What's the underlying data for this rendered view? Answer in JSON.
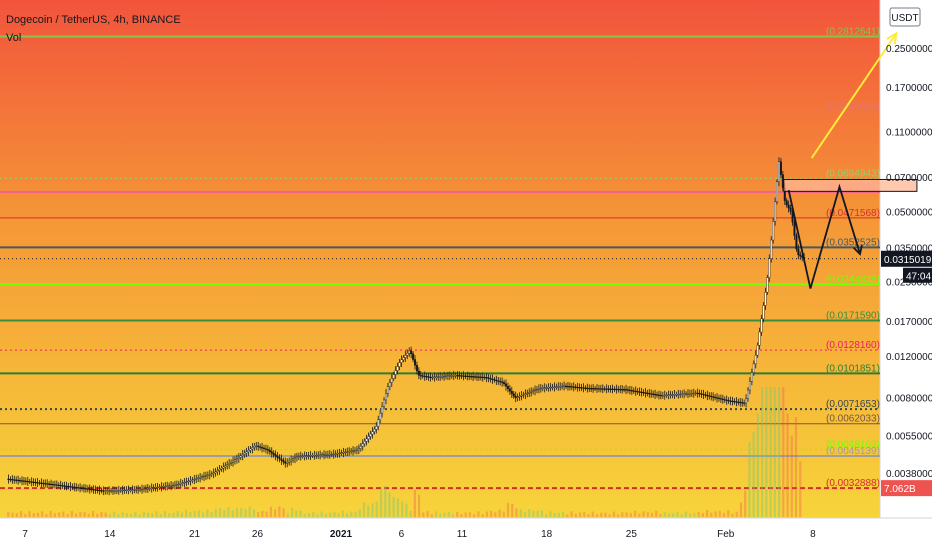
{
  "header": {
    "title": "Dogecoin / TetherUS, 4h, BINANCE",
    "indicator": "Vol",
    "currency": "USDT"
  },
  "chart_data": {
    "type": "candlestick",
    "symbol": "Dogecoin / TetherUS",
    "interval": "4h",
    "exchange": "BINANCE",
    "scale": "log",
    "ylim": [
      0.0026,
      0.38
    ],
    "x_ticks": [
      "7",
      "14",
      "21",
      "26",
      "2021",
      "6",
      "11",
      "18",
      "25",
      "Feb",
      "8"
    ],
    "y_ticks": [
      "0.2500000",
      "0.1700000",
      "0.1100000",
      "0.0700000",
      "0.0500000",
      "0.0350000",
      "0.0250000",
      "0.0170000",
      "0.0120000",
      "0.0080000",
      "0.0055000",
      "0.0038000"
    ],
    "price_path": [
      [
        0,
        0.0036
      ],
      [
        4,
        0.0034
      ],
      [
        8,
        0.0032
      ],
      [
        11,
        0.00325
      ],
      [
        14,
        0.0034
      ],
      [
        17,
        0.0038
      ],
      [
        19,
        0.0044
      ],
      [
        20.5,
        0.005
      ],
      [
        21.5,
        0.0048
      ],
      [
        23,
        0.0042
      ],
      [
        24,
        0.0045
      ],
      [
        27,
        0.0046
      ],
      [
        29,
        0.0048
      ],
      [
        30.5,
        0.006
      ],
      [
        31.5,
        0.009
      ],
      [
        32.5,
        0.0115
      ],
      [
        33.3,
        0.0128
      ],
      [
        34,
        0.01
      ],
      [
        35,
        0.0098
      ],
      [
        37,
        0.01
      ],
      [
        39.5,
        0.0098
      ],
      [
        41,
        0.0093
      ],
      [
        42,
        0.008
      ],
      [
        44,
        0.0088
      ],
      [
        46,
        0.009
      ],
      [
        48,
        0.0088
      ],
      [
        51,
        0.0087
      ],
      [
        54,
        0.0082
      ],
      [
        57,
        0.0084
      ],
      [
        59.5,
        0.0078
      ],
      [
        61,
        0.0076
      ],
      [
        62,
        0.013
      ],
      [
        62.8,
        0.025
      ],
      [
        63.4,
        0.05
      ],
      [
        63.8,
        0.082
      ],
      [
        64.3,
        0.055
      ],
      [
        64.8,
        0.05
      ],
      [
        65.3,
        0.033
      ],
      [
        65.9,
        0.0315
      ]
    ],
    "volume_spike_day": 63.4,
    "levels": [
      {
        "value": "0.2812641",
        "price": 0.2812641,
        "color": "#8bc34a",
        "style": "solid",
        "width": 2
      },
      {
        "value": "0.1345832",
        "price": 0.1345832,
        "color": "#e57373",
        "style": "dotted",
        "width": 1
      },
      {
        "value": "0.0694943",
        "price": 0.0694943,
        "color": "#9ccc65",
        "style": "dotted",
        "width": 1
      },
      {
        "value": "0.0608812",
        "price": 0.0608812,
        "color": "#f06292",
        "style": "solid",
        "width": 2
      },
      {
        "value": "0.0471568",
        "price": 0.0471568,
        "color": "#d32f2f",
        "style": "solid",
        "width": 1
      },
      {
        "value": "0.0352525",
        "price": 0.0352525,
        "color": "#455a64",
        "style": "solid",
        "width": 2
      },
      {
        "value": "0.0244825",
        "price": 0.0244825,
        "color": "#76ff03",
        "style": "solid",
        "width": 2
      },
      {
        "value": "0.0171590",
        "price": 0.017159,
        "color": "#388e3c",
        "style": "solid",
        "width": 2
      },
      {
        "value": "0.0128160",
        "price": 0.012816,
        "color": "#e91e63",
        "style": "dotted",
        "width": 1
      },
      {
        "value": "0.0101851",
        "price": 0.0101851,
        "color": "#2e7d32",
        "style": "solid",
        "width": 2
      },
      {
        "value": "0.0071653",
        "price": 0.0071653,
        "color": "#37474f",
        "style": "dotted",
        "width": 2
      },
      {
        "value": "0.0062033",
        "price": 0.0062033,
        "color": "#795548",
        "style": "solid",
        "width": 1
      },
      {
        "value": "0.0048163",
        "price": 0.0048163,
        "color": "#76ff03",
        "style": "dotted",
        "width": 1
      },
      {
        "value": "0.0045139",
        "price": 0.0045139,
        "color": "#9e9e9e",
        "style": "solid",
        "width": 2
      },
      {
        "value": "0.0032888",
        "price": 0.0032888,
        "color": "#d32f2f",
        "style": "dashed",
        "width": 2
      }
    ],
    "current_price": "0.0315019",
    "current_price_value": 0.0315019,
    "countdown": "47:04",
    "volume_badge": "7.062B",
    "annotations": {
      "target_arrow": {
        "from": [
          66.5,
          0.085
        ],
        "to": [
          73.5,
          0.29
        ],
        "color": "#ffeb3b"
      },
      "zig_zag": [
        [
          64.6,
          0.062
        ],
        [
          66.4,
          0.0235
        ],
        [
          68.8,
          0.064
        ],
        [
          70.5,
          0.033
        ]
      ],
      "resistance_box": {
        "x0": 64.2,
        "x1": 75.2,
        "y_low": 0.0612,
        "y_high": 0.0688
      }
    }
  }
}
